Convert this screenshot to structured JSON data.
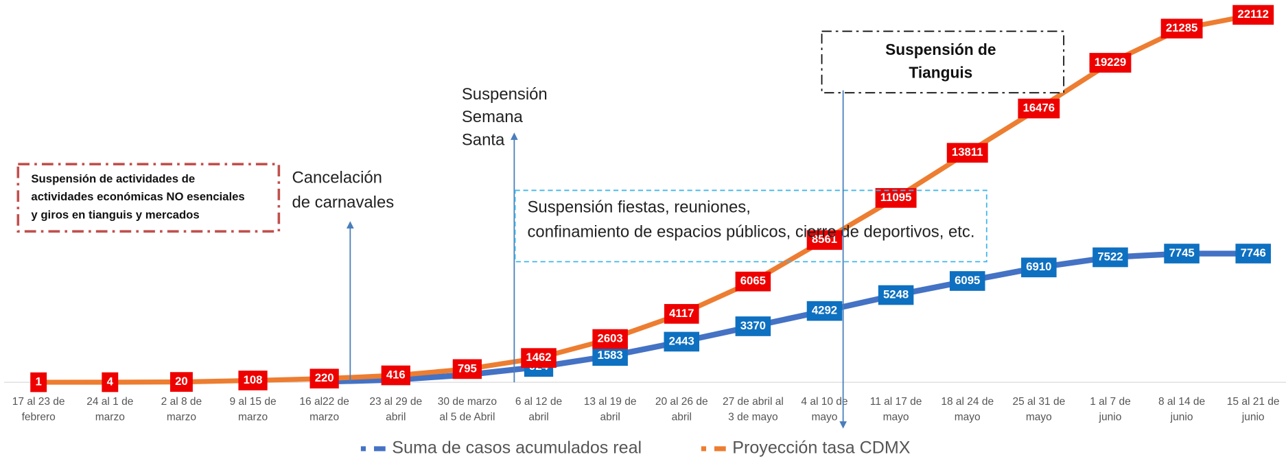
{
  "chart_data": {
    "type": "line",
    "categories": [
      "17 al 23 de\nfebrero",
      "24 al 1 de\nmarzo",
      "2 al 8 de\nmarzo",
      "9 al 15 de\nmarzo",
      "16 al22 de\nmarzo",
      "23 al 29 de\nabril",
      "30 de marzo\nal 5 de Abril",
      "6 al 12 de\nabril",
      "13 al 19 de\nabril",
      "20 al 26 de\nabril",
      "27 de abril al\n3 de mayo",
      "4 al 10 de\nmayo",
      "11 al 17 de\nmayo",
      "18 al 24 de\nmayo",
      "25 al 31 de\nmayo",
      "1 al 7 de\njunio",
      "8 al 14 de\njunio",
      "15 al 21 de\njunio"
    ],
    "series": [
      {
        "name": "Suma de casos acumulados real",
        "color": "#4472c4",
        "label_color": "#0e70c0",
        "values": [
          null,
          null,
          null,
          null,
          30,
          150,
          450,
          924,
          1583,
          2443,
          3370,
          4292,
          5248,
          6095,
          6910,
          7522,
          7745,
          7746
        ],
        "value_labels": [
          null,
          null,
          null,
          null,
          null,
          null,
          null,
          "924",
          "1583",
          "2443",
          "3370",
          "4292",
          "5248",
          "6095",
          "6910",
          "7522",
          "7745",
          "7746"
        ]
      },
      {
        "name": "Proyección tasa CDMX",
        "color": "#ed7d31",
        "label_color": "#ee0000",
        "values": [
          1,
          4,
          20,
          108,
          220,
          416,
          795,
          1462,
          2603,
          4117,
          6065,
          8561,
          11095,
          13811,
          16476,
          19229,
          21285,
          22112
        ]
      }
    ],
    "ylim": [
      0,
      23000
    ],
    "annotations": [
      "Suspensión de actividades de\nactividades económicas NO esenciales\ny giros en tianguis y mercados",
      "Cancelación\nde carnavales",
      "Suspensión\nSemana\nSanta",
      "Suspensión fiestas, reuniones,\nconfinamiento de espacios públicos, cierre de deportivos, etc.",
      "Suspensión de\nTianguis"
    ]
  }
}
